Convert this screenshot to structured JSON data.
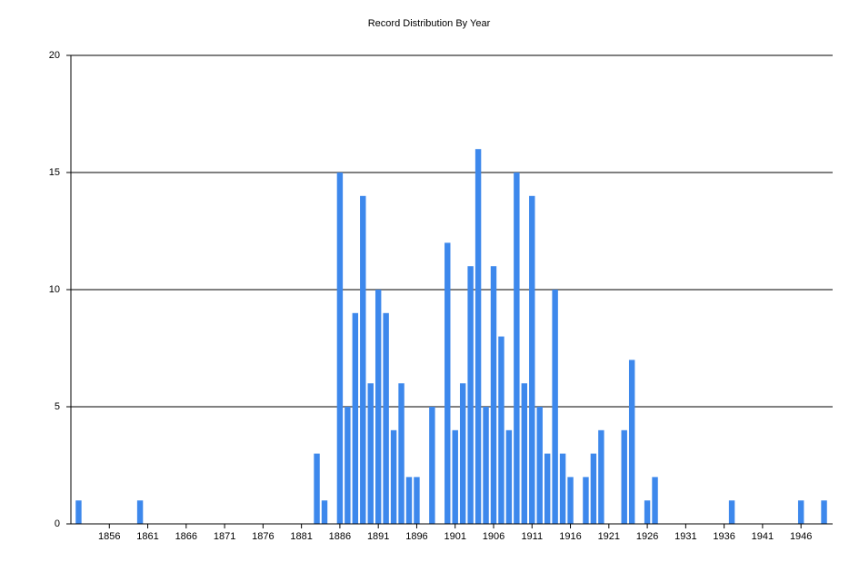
{
  "chart_data": {
    "type": "bar",
    "title": "Record Distribution By Year",
    "x": [
      1852,
      1860,
      1883,
      1884,
      1886,
      1887,
      1888,
      1889,
      1890,
      1891,
      1892,
      1893,
      1894,
      1895,
      1896,
      1898,
      1900,
      1901,
      1902,
      1903,
      1904,
      1905,
      1906,
      1907,
      1908,
      1909,
      1910,
      1911,
      1912,
      1913,
      1914,
      1915,
      1916,
      1918,
      1919,
      1920,
      1923,
      1924,
      1926,
      1927,
      1937,
      1946,
      1949
    ],
    "values": [
      1,
      1,
      3,
      1,
      15,
      5,
      9,
      14,
      6,
      10,
      9,
      4,
      6,
      2,
      2,
      5,
      12,
      4,
      6,
      11,
      16,
      5,
      11,
      8,
      4,
      15,
      6,
      14,
      5,
      3,
      10,
      3,
      2,
      2,
      3,
      4,
      4,
      7,
      1,
      2,
      1,
      1,
      1
    ],
    "color": "#3d88ec",
    "xlim": [
      1851,
      1950
    ],
    "xticks": [
      1856,
      1861,
      1866,
      1871,
      1876,
      1881,
      1886,
      1891,
      1896,
      1901,
      1906,
      1911,
      1916,
      1921,
      1926,
      1931,
      1936,
      1941,
      1946
    ],
    "ylim": [
      0,
      20
    ],
    "yticks": [
      0,
      5,
      10,
      15,
      20
    ],
    "grid": true
  }
}
